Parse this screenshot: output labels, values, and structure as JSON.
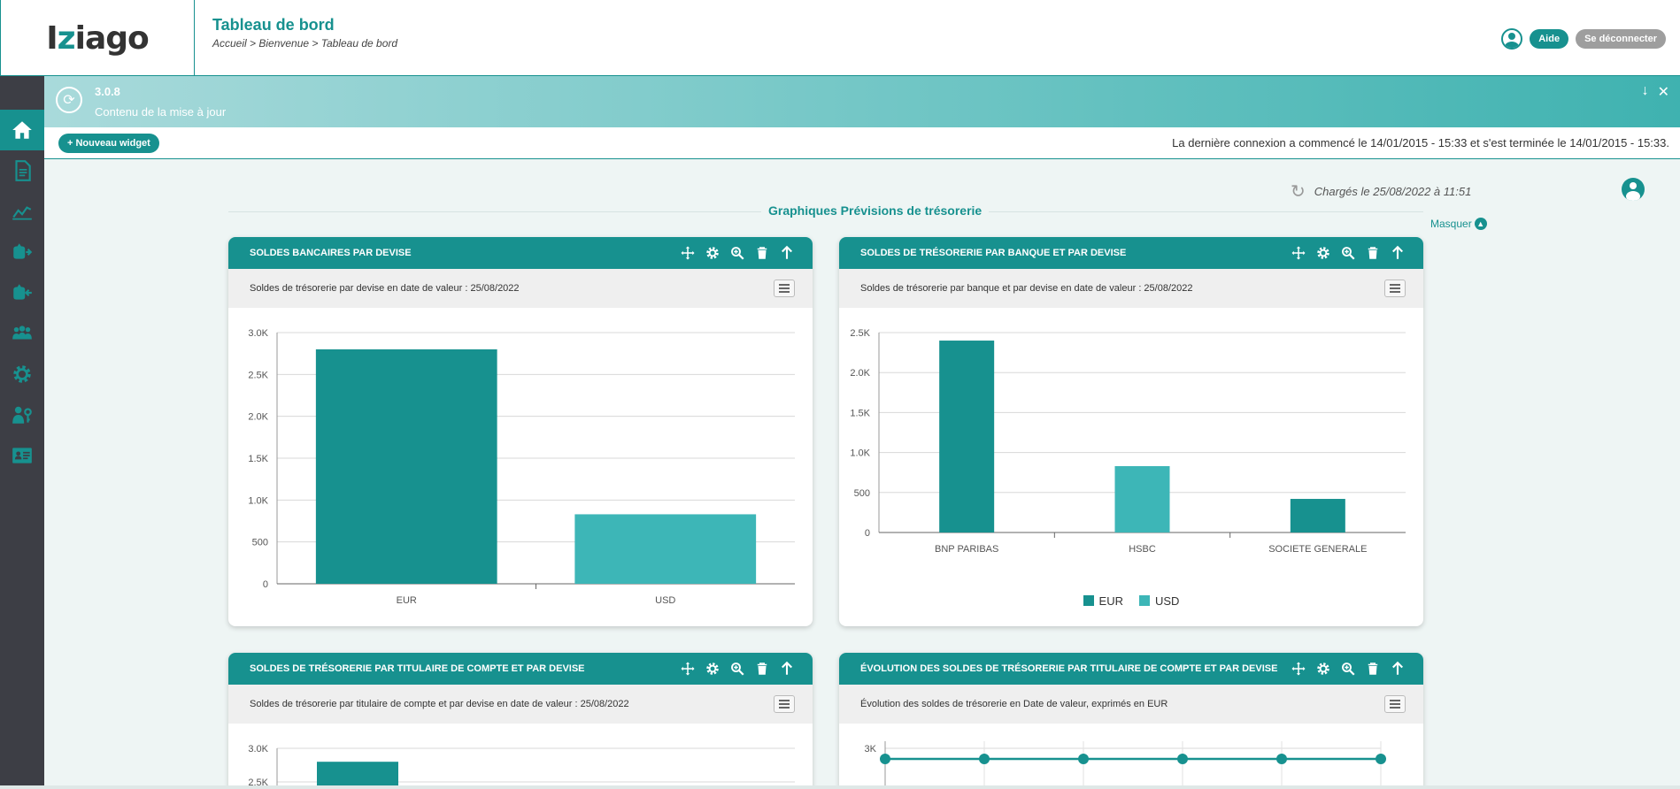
{
  "header": {
    "logo": {
      "pre": "I",
      "z": "z",
      "post": "iago"
    },
    "title": "Tableau de bord",
    "breadcrumb": "Accueil > Bienvenue > Tableau de bord",
    "help_label": "Aide",
    "logout_label": "Se déconnecter"
  },
  "sidebar": {
    "items": [
      {
        "icon": "home-icon",
        "active": true
      },
      {
        "icon": "document-icon"
      },
      {
        "icon": "line-chart-icon"
      },
      {
        "icon": "outgoing-transfer-icon"
      },
      {
        "icon": "incoming-transfer-icon"
      },
      {
        "icon": "users-icon"
      },
      {
        "icon": "gear-icon"
      },
      {
        "icon": "user-key-icon"
      },
      {
        "icon": "id-card-icon"
      }
    ]
  },
  "banner": {
    "version": "3.0.8",
    "description": "Contenu de la mise à jour"
  },
  "toolbar": {
    "new_widget_label": "+ Nouveau widget",
    "last_connection": "La dernière connexion a commencé le 14/01/2015 - 15:33 et s'est terminée le 14/01/2015 - 15:33."
  },
  "content": {
    "loaded_text": "Chargés le 25/08/2022 à 11:51",
    "section_title": "Graphiques Prévisions de trésorerie",
    "hide_label": "Masquer"
  },
  "colors": {
    "primary": "#17918f",
    "secondary": "#3db6b7"
  },
  "widgets": [
    {
      "title": "SOLDES BANCAIRES PAR DEVISE",
      "subtitle": "Soldes de trésorerie par devise en date de valeur : 25/08/2022"
    },
    {
      "title": "SOLDES DE TRÉSORERIE PAR BANQUE ET PAR DEVISE",
      "subtitle": "Soldes de trésorerie par banque et par devise en date de valeur : 25/08/2022"
    },
    {
      "title": "SOLDES DE TRÉSORERIE PAR TITULAIRE DE COMPTE ET PAR DEVISE",
      "subtitle": "Soldes de trésorerie par titulaire de compte et par devise en date de valeur : 25/08/2022"
    },
    {
      "title": "ÉVOLUTION DES SOLDES DE TRÉSORERIE PAR TITULAIRE DE COMPTE ET PAR DEVISE",
      "subtitle": "Évolution des soldes de trésorerie en Date de valeur, exprimés en EUR"
    }
  ],
  "chart_data": [
    {
      "type": "bar",
      "categories": [
        "EUR",
        "USD"
      ],
      "values": [
        2800,
        830
      ],
      "ylim": [
        0,
        3000
      ],
      "yticks": [
        "0",
        "500",
        "1.0K",
        "1.5K",
        "2.0K",
        "2.5K",
        "3.0K"
      ],
      "colors": [
        "#17918f",
        "#3db6b7"
      ],
      "grid": true
    },
    {
      "type": "bar",
      "categories": [
        "BNP PARIBAS",
        "HSBC",
        "SOCIETE GENERALE"
      ],
      "series": [
        {
          "name": "EUR",
          "values": [
            2400,
            0,
            420
          ],
          "color": "#17918f"
        },
        {
          "name": "USD",
          "values": [
            0,
            830,
            0
          ],
          "color": "#3db6b7"
        }
      ],
      "ylim": [
        0,
        2500
      ],
      "yticks": [
        "0",
        "500",
        "1.0K",
        "1.5K",
        "2.0K",
        "2.5K"
      ],
      "legend": "bottom-center",
      "grid": true
    },
    {
      "type": "bar",
      "values": [
        2800
      ],
      "ylim": [
        0,
        3000
      ],
      "yticks": [
        "2.5K",
        "3.0K"
      ],
      "colors": [
        "#17918f"
      ],
      "grid": true
    },
    {
      "type": "line",
      "values": [
        2850,
        2850,
        2850,
        2850,
        2850,
        2850
      ],
      "yticks": [
        "3K"
      ],
      "colors": [
        "#17918f"
      ],
      "grid": true
    }
  ]
}
